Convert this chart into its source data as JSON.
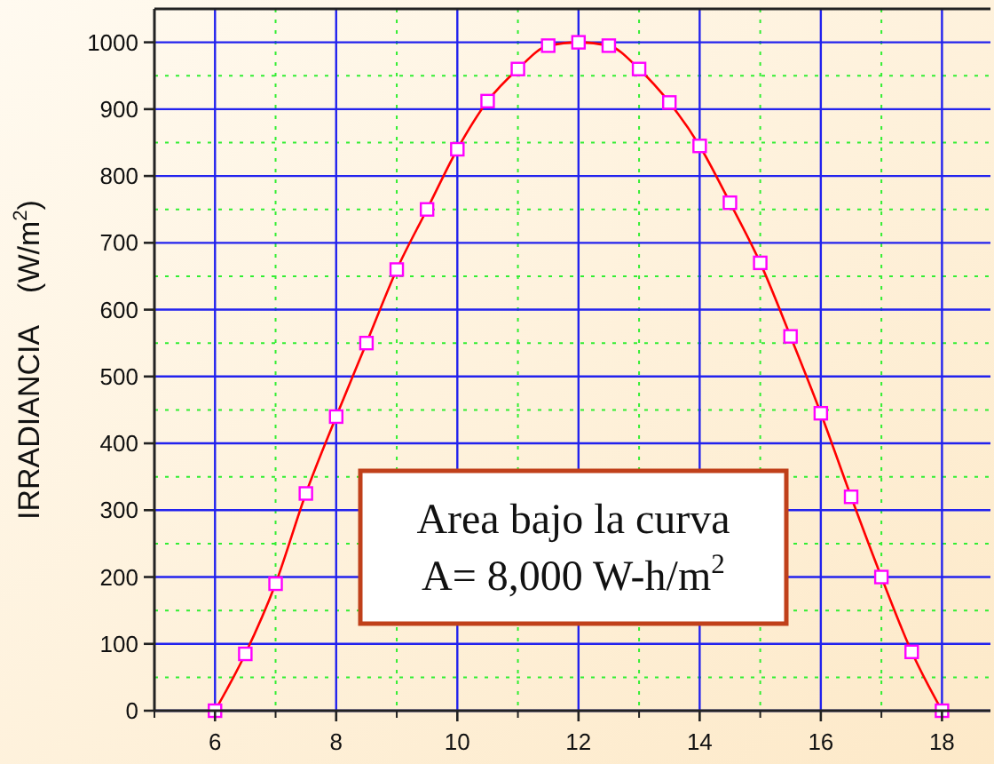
{
  "chart_data": {
    "type": "line",
    "ylabel": "IRRADIANCIA    (W/m$^{2}$)",
    "x": [
      6,
      6.5,
      7,
      7.5,
      8,
      8.5,
      9,
      9.5,
      10,
      10.5,
      11,
      11.5,
      12,
      12.5,
      13,
      13.5,
      14,
      14.5,
      15,
      15.5,
      16,
      16.5,
      17,
      17.5,
      18
    ],
    "series": [
      {
        "color": "#ff0000",
        "values": [
          0,
          85,
          190,
          325,
          440,
          550,
          660,
          750,
          840,
          912,
          960,
          995,
          1000,
          995,
          960,
          910,
          845,
          760,
          670,
          560,
          445,
          320,
          200,
          88,
          0
        ]
      }
    ],
    "marker": "square",
    "xlim": [
      5,
      18.8
    ],
    "xticks": [
      {
        "value": 5,
        "label": null
      },
      6,
      {
        "value": 7,
        "label": null
      },
      8,
      {
        "value": 9,
        "label": null
      },
      10,
      {
        "value": 11,
        "label": null
      },
      12,
      {
        "value": 13,
        "label": null
      },
      14,
      {
        "value": 15,
        "label": null
      },
      16,
      {
        "value": 17,
        "label": null
      },
      18
    ],
    "ylim": [
      0,
      1050
    ],
    "yticks": [
      0,
      {
        "value": 50,
        "label": null
      },
      100,
      {
        "value": 150,
        "label": null
      },
      200,
      {
        "value": 250,
        "label": null
      },
      300,
      {
        "value": 350,
        "label": null
      },
      400,
      {
        "value": 450,
        "label": null
      },
      500,
      {
        "value": 550,
        "label": null
      },
      600,
      {
        "value": 650,
        "label": null
      },
      700,
      {
        "value": 750,
        "label": null
      },
      800,
      {
        "value": 850,
        "label": null
      },
      900,
      {
        "value": 950,
        "label": null
      },
      1000
    ],
    "grid": true,
    "annotations": [
      "Area bajo la curva\nA= 8,000 W-h/m$^{2}$"
    ]
  }
}
